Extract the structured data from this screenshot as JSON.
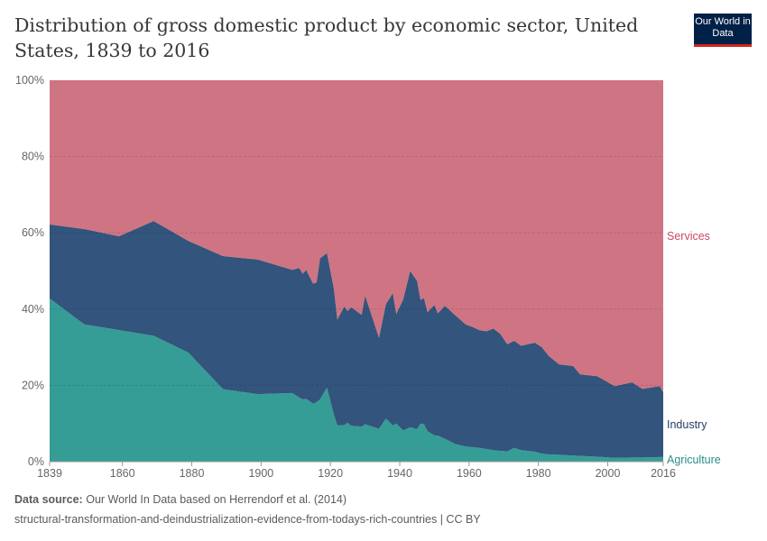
{
  "header": {
    "title": "Distribution of gross domestic product by economic sector, United States, 1839 to 2016",
    "logo": "Our World in Data"
  },
  "footer": {
    "source_label": "Data source:",
    "source_text": "Our World In Data based on Herrendorf et al. (2014)",
    "url_line": "structural-transformation-and-deindustrialization-evidence-from-todays-rich-countries | CC BY"
  },
  "chart_data": {
    "type": "area",
    "stacked": true,
    "title": "Distribution of gross domestic product by economic sector, United States, 1839 to 2016",
    "xlim": [
      1839,
      2016
    ],
    "ylim": [
      0,
      100
    ],
    "x_ticks": [
      "1839",
      "1860",
      "1880",
      "1900",
      "1920",
      "1940",
      "1960",
      "1980",
      "2000",
      "2016"
    ],
    "y_ticks": [
      "0%",
      "20%",
      "40%",
      "60%",
      "80%",
      "100%"
    ],
    "grid": "horizontal dashed",
    "legend": "right, inline labels",
    "x": [
      1839,
      1849,
      1859,
      1869,
      1879,
      1889,
      1899,
      1909,
      1911,
      1912,
      1913,
      1915,
      1916,
      1917,
      1919,
      1921,
      1922,
      1924,
      1925,
      1926,
      1929,
      1930,
      1934,
      1936,
      1938,
      1939,
      1941,
      1943,
      1945,
      1946,
      1947,
      1948,
      1950,
      1951,
      1953,
      1956,
      1959,
      1961,
      1963,
      1965,
      1967,
      1969,
      1971,
      1973,
      1975,
      1979,
      1981,
      1983,
      1986,
      1990,
      1992,
      1997,
      2002,
      2007,
      2010,
      2015,
      2016
    ],
    "series": [
      {
        "name": "Agriculture",
        "color": "#359d96",
        "label_color": "#2a8d86",
        "values": [
          42.8,
          36,
          34.5,
          33,
          28.6,
          19,
          17.7,
          18,
          16.8,
          16.3,
          16.5,
          15.2,
          15.6,
          16.3,
          19.4,
          12.3,
          9.5,
          9.6,
          10.2,
          9.4,
          9.2,
          9.8,
          8.6,
          11.3,
          9.5,
          10,
          8.2,
          9,
          8.5,
          10,
          9.8,
          8,
          6.9,
          6.8,
          6,
          4.6,
          4,
          3.8,
          3.6,
          3.3,
          3,
          2.8,
          2.7,
          3.6,
          3,
          2.6,
          2.1,
          1.9,
          1.8,
          1.6,
          1.5,
          1.3,
          1,
          1.1,
          1.1,
          1.2,
          1.2
        ]
      },
      {
        "name": "Industry",
        "color": "#33547c",
        "label_color": "#23406b",
        "values": [
          19.4,
          25,
          24.6,
          30.1,
          29.3,
          34.9,
          35.3,
          32.3,
          34,
          33,
          33.8,
          31.5,
          31.4,
          37,
          35.3,
          33.1,
          27.8,
          31.1,
          29.3,
          31.1,
          29.3,
          33.8,
          23.9,
          30,
          34.7,
          28.7,
          34.4,
          41,
          38.9,
          32.4,
          33.1,
          31.2,
          34.2,
          32.1,
          34.9,
          33.8,
          32,
          31.5,
          30.9,
          30.9,
          31.9,
          30.7,
          28.1,
          28.1,
          27.4,
          28.6,
          27.9,
          25.8,
          23.7,
          23.5,
          21.4,
          21.1,
          18.8,
          19.7,
          18,
          18.6,
          17
        ]
      },
      {
        "name": "Services",
        "color": "#cf7483",
        "label_color": "#c94a63",
        "values": [
          37.8,
          39,
          40.9,
          36.9,
          42.1,
          46.1,
          47,
          49.7,
          49.2,
          50.7,
          49.7,
          53.3,
          53,
          46.7,
          45.3,
          54.6,
          62.7,
          59.3,
          60.5,
          59.5,
          61.5,
          56.4,
          67.5,
          58.7,
          55.8,
          61.3,
          57.4,
          50,
          52.6,
          57.6,
          57.1,
          60.8,
          58.9,
          61.1,
          59.1,
          61.6,
          64,
          64.7,
          65.5,
          65.8,
          65.1,
          66.5,
          69.2,
          68.3,
          69.6,
          68.8,
          70,
          72.3,
          74.5,
          74.9,
          77.1,
          77.6,
          80.2,
          79.2,
          80.9,
          80.2,
          81.8
        ]
      }
    ]
  }
}
